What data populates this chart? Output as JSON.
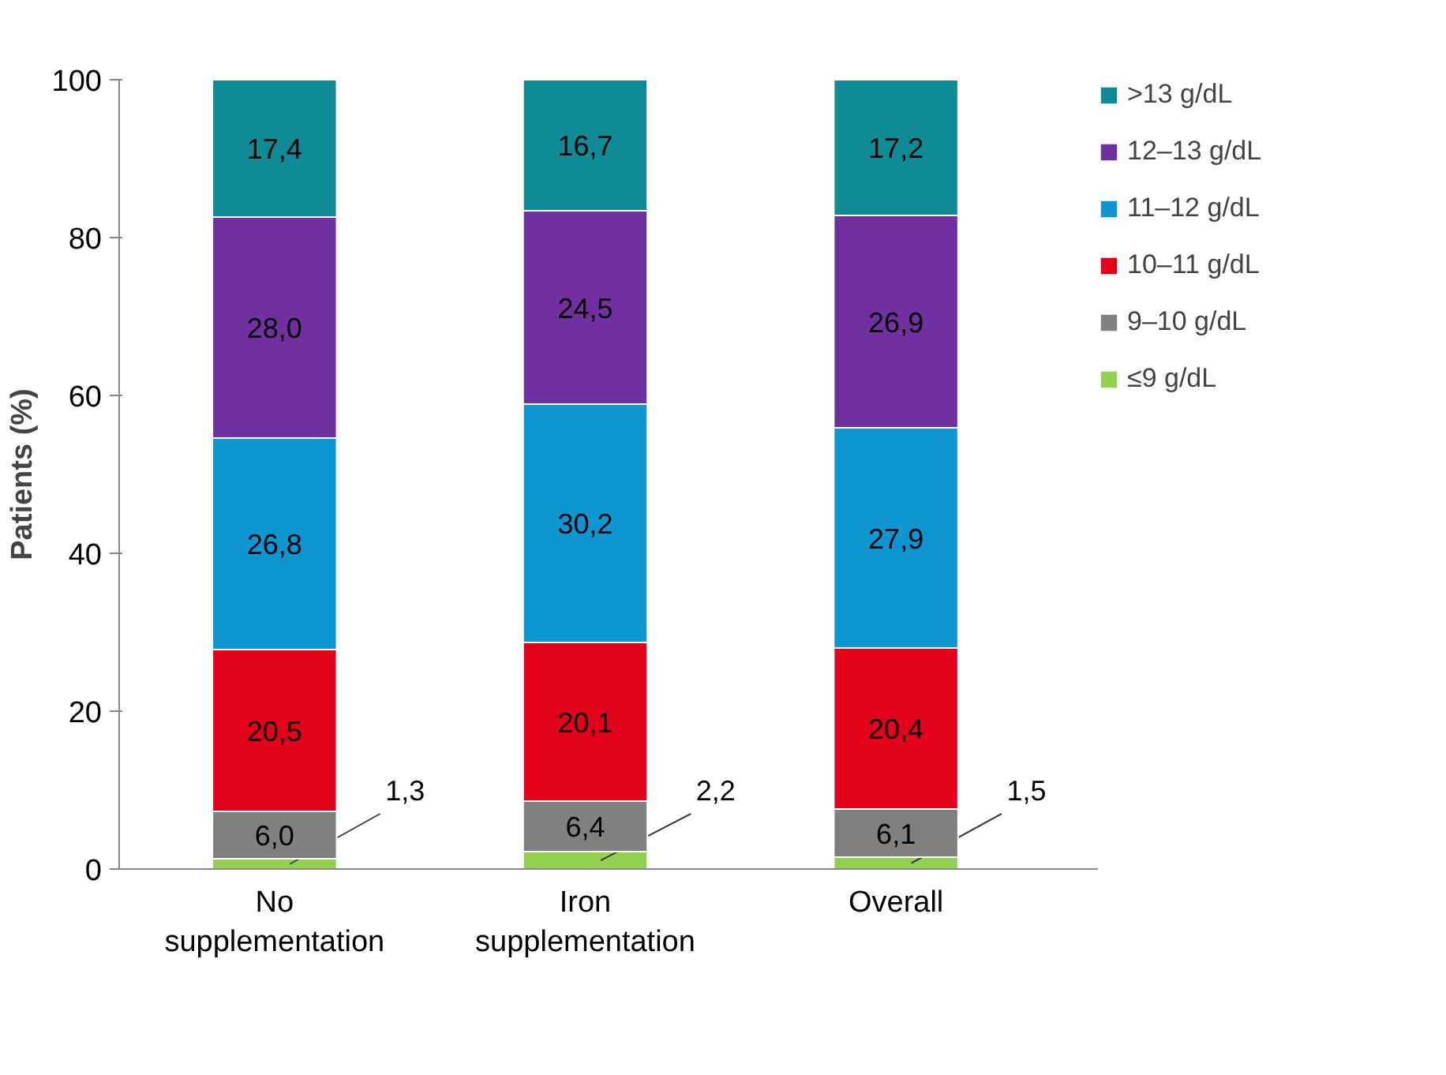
{
  "chart_data": {
    "type": "bar",
    "stacked": true,
    "ylabel": "Patients (%)",
    "categories": [
      "No\nsupplementation",
      "Iron\nsupplementation",
      "Overall"
    ],
    "ylim": [
      0,
      100
    ],
    "yticks": [
      0,
      20,
      40,
      60,
      80,
      100
    ],
    "grid": false,
    "legend": "top right",
    "series": [
      {
        "name": "≤9 g/dL",
        "color": "#92d050",
        "values": [
          1.3,
          2.2,
          1.5
        ],
        "value_labels": [
          "1,3",
          "2,2",
          "1,5"
        ]
      },
      {
        "name": "9–10 g/dL",
        "color": "#808080",
        "values": [
          6.0,
          6.4,
          6.1
        ],
        "value_labels": [
          "6,0",
          "6,4",
          "6,1"
        ]
      },
      {
        "name": "10–11 g/dL",
        "color": "#e3001b",
        "values": [
          20.5,
          20.1,
          20.4
        ],
        "value_labels": [
          "20,5",
          "20,1",
          "20,4"
        ]
      },
      {
        "name": "11–12 g/dL",
        "color": "#0e96d0",
        "values": [
          26.8,
          30.2,
          27.9
        ],
        "value_labels": [
          "26,8",
          "30,2",
          "27,9"
        ]
      },
      {
        "name": "12–13 g/dL",
        "color": "#7030a0",
        "values": [
          28.0,
          24.5,
          26.9
        ],
        "value_labels": [
          "28,0",
          "24,5",
          "26,9"
        ]
      },
      {
        "name": ">13 g/dL",
        "color": "#108b96",
        "values": [
          17.4,
          16.7,
          17.2
        ],
        "value_labels": [
          "17,4",
          "16,7",
          "17,2"
        ]
      }
    ]
  }
}
